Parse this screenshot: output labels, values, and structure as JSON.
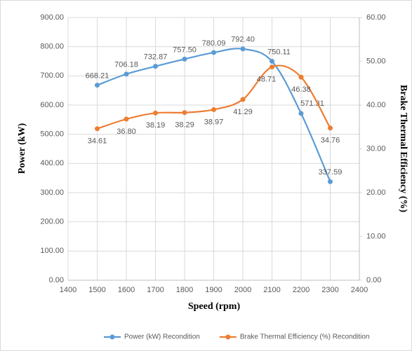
{
  "chart_data": {
    "type": "line",
    "xlabel": "Speed (rpm)",
    "ylabel": "Power (kW)",
    "y2label": "Brake Thermal Efficiency (%)",
    "x": [
      1500,
      1600,
      1700,
      1800,
      1900,
      2000,
      2100,
      2200,
      2300
    ],
    "series": [
      {
        "name": "Power (kW) Recondition",
        "color": "#5b9bd5",
        "values": [
          668.21,
          706.18,
          732.87,
          757.5,
          780.09,
          792.4,
          750.11,
          571.31,
          337.59
        ],
        "value_labels": [
          "668.21",
          "706.18",
          "732.87",
          "757.50",
          "780.09",
          "792.40",
          "750.11",
          "571.31",
          "337.59"
        ]
      },
      {
        "name": "Brake Thermal Efficiency (%) Recondition",
        "color": "#ed7d31",
        "axis": "y2",
        "values": [
          34.61,
          36.8,
          38.19,
          38.29,
          38.97,
          41.29,
          48.71,
          46.38,
          34.76
        ],
        "value_labels": [
          "34.61",
          "36.80",
          "38.19",
          "38.29",
          "38.97",
          "41.29",
          "48.71",
          "46.38",
          "34.76"
        ]
      }
    ],
    "xlim": [
      1400,
      2400
    ],
    "xticks": [
      1400,
      1500,
      1600,
      1700,
      1800,
      1900,
      2000,
      2100,
      2200,
      2300,
      2400
    ],
    "ylim": [
      0,
      900
    ],
    "yticks": [
      {
        "value": 0,
        "label": "0.00"
      },
      {
        "value": 100,
        "label": "100.00"
      },
      {
        "value": 200,
        "label": "200.00"
      },
      {
        "value": 300,
        "label": "300.00"
      },
      {
        "value": 400,
        "label": "400.00"
      },
      {
        "value": 500,
        "label": "500.00"
      },
      {
        "value": 600,
        "label": "600.00"
      },
      {
        "value": 700,
        "label": "700.00"
      },
      {
        "value": 800,
        "label": "800.00"
      },
      {
        "value": 900,
        "label": "900.00"
      }
    ],
    "y2lim": [
      0,
      60
    ],
    "y2ticks": [
      {
        "value": 0,
        "label": "0.00"
      },
      {
        "value": 10,
        "label": "10.00"
      },
      {
        "value": 20,
        "label": "20.00"
      },
      {
        "value": 30,
        "label": "30.00"
      },
      {
        "value": 40,
        "label": "40.00"
      },
      {
        "value": 50,
        "label": "50.00"
      },
      {
        "value": 60,
        "label": "60.00"
      }
    ],
    "grid": true,
    "legend": "bottom"
  }
}
